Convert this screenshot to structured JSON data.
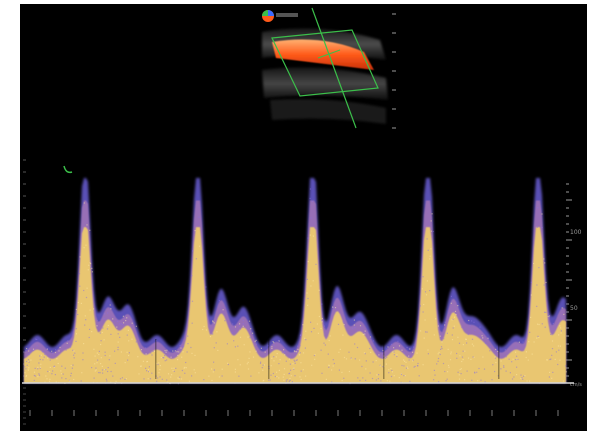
{
  "image": {
    "kind": "spectral-doppler-ultrasound",
    "colors": {
      "background": "#000000",
      "border": "#ffffff",
      "spectrum_core": "#f2d06b",
      "spectrum_edge": "#6a5fd6",
      "vessel_flow": "#ff5a1a",
      "sample_box": "#3bbf4a",
      "scale_marks": "#9a9a9a"
    },
    "icons": [
      "color-map-icon",
      "transducer-marker-icon"
    ],
    "right_scale_labels": [
      "100",
      "50",
      "cm/s"
    ],
    "cardiac_cycles": 5
  }
}
